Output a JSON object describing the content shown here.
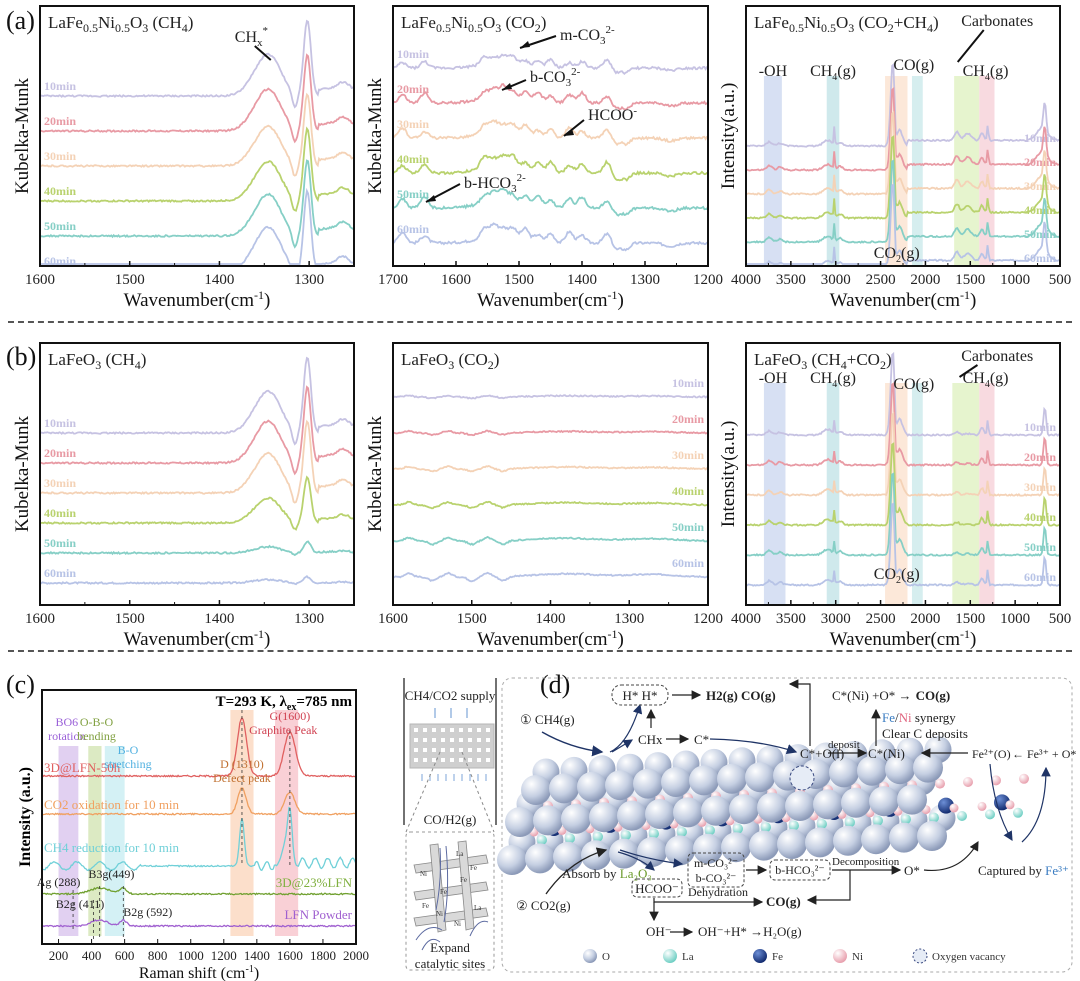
{
  "figure": {
    "panel_letters": [
      "(a)",
      "(b)",
      "(c)",
      "(d)"
    ]
  },
  "series_colors": {
    "10min": "#c6c2e2",
    "20min": "#e89aa4",
    "30min": "#f4d2b6",
    "40min": "#b9d26e",
    "50min": "#86cfc6",
    "60min": "#b7c3e6"
  },
  "chart_data": [
    {
      "id": "a1",
      "type": "line",
      "title": "LaFe0.5Ni0.5O3 (CH4)",
      "title_parts": {
        "main": "LaFe",
        "s1": "0.5",
        "m2": "Ni",
        "s2": "0.5",
        "m3": "O",
        "s3": "3",
        "m4": " (CH",
        "s4": "4",
        "m5": ")"
      },
      "xlabel": "Wavenumber(cm-1)",
      "ylabel": "Kubelka-Munk",
      "xlim": [
        1600,
        1250
      ],
      "xticks": [
        1600,
        1500,
        1400,
        1300
      ],
      "legend": [
        "10min",
        "20min",
        "30min",
        "40min",
        "50min",
        "60min"
      ],
      "annotations": [
        {
          "text": "CHx*",
          "x": 1345
        }
      ],
      "profile": "ch4_narrow",
      "amplitudes": [
        1.0,
        1.0,
        0.95,
        0.95,
        1.0,
        1.05
      ]
    },
    {
      "id": "a2",
      "type": "line",
      "title": "LaFe0.5Ni0.5O3 (CO2)",
      "title_parts": {
        "main": "LaFe",
        "s1": "0.5",
        "m2": "Ni",
        "s2": "0.5",
        "m3": "O",
        "s3": "3",
        "m4": " (CO",
        "s4": "2",
        "m5": ")"
      },
      "xlabel": "Wavenumber(cm-1)",
      "ylabel": "Kubelka-Munk",
      "xlim": [
        1700,
        1200
      ],
      "xticks": [
        1700,
        1600,
        1500,
        1400,
        1300,
        1200
      ],
      "legend": [
        "10min",
        "20min",
        "30min",
        "40min",
        "50min",
        "60min"
      ],
      "annotations": [
        {
          "text": "m-CO3 2-",
          "x": 1500
        },
        {
          "text": "b-CO3 2-",
          "x": 1530
        },
        {
          "text": "HCOO-",
          "x": 1430
        },
        {
          "text": "b-HCO3 2-",
          "x": 1650
        }
      ],
      "profile": "co2_bumps",
      "amplitudes": [
        0.7,
        0.9,
        0.9,
        1.0,
        1.0,
        1.0
      ]
    },
    {
      "id": "a3",
      "type": "line",
      "title": "LaFe0.5Ni0.5O3 (CO2+CH4)",
      "title_parts": {
        "main": "LaFe",
        "s1": "0.5",
        "m2": "Ni",
        "s2": "0.5",
        "m3": "O",
        "s3": "3",
        "m4": " (CO",
        "s4": "2",
        "m5": "+CH",
        "s5": "4",
        "m6": ")"
      },
      "xlabel": "Wavenumber(cm-1)",
      "ylabel": "Intensity(a.u.)",
      "xlim": [
        4000,
        500
      ],
      "xticks": [
        4000,
        3500,
        3000,
        2500,
        2000,
        1500,
        1000,
        500
      ],
      "legend": [
        "10min",
        "20min",
        "30min",
        "40min",
        "50min",
        "60min"
      ],
      "bands": [
        {
          "label": "-OH",
          "range": [
            3800,
            3600
          ],
          "color": "#c9d6ef"
        },
        {
          "label": "CH4(g)",
          "range": [
            3100,
            2960
          ],
          "color": "#bfe2e6"
        },
        {
          "label": "CO2(g)",
          "range": [
            2450,
            2200
          ],
          "color": "#fbe0cc"
        },
        {
          "label": "CO(g)",
          "range": [
            2150,
            2030
          ],
          "color": "#c8e8ea"
        },
        {
          "label": "Carbonates",
          "range": [
            1680,
            1400
          ],
          "color": "#def0be"
        },
        {
          "label": "CH4(g)",
          "range": [
            1400,
            1230
          ],
          "color": "#f5cdd6"
        }
      ],
      "profile": "wide",
      "amplitudes": [
        1,
        1,
        1,
        1,
        1,
        1
      ]
    },
    {
      "id": "b1",
      "type": "line",
      "title": "LaFeO3 (CH4)",
      "title_parts": {
        "main": "LaFeO",
        "s1": "3",
        "m2": " (CH",
        "s2": "4",
        "m3": ")"
      },
      "xlabel": "Wavenumber(cm-1)",
      "ylabel": "Kubelka-Munk",
      "xlim": [
        1600,
        1250
      ],
      "xticks": [
        1600,
        1500,
        1400,
        1300
      ],
      "legend": [
        "10min",
        "20min",
        "30min",
        "40min",
        "50min",
        "60min"
      ],
      "profile": "ch4_narrow",
      "amplitudes": [
        1.0,
        1.0,
        0.95,
        0.6,
        0.15,
        0.08
      ]
    },
    {
      "id": "b2",
      "type": "line",
      "title": "LaFeO3 (CO2)",
      "title_parts": {
        "main": "LaFeO",
        "s1": "3",
        "m2": " (CO",
        "s2": "2",
        "m3": ")"
      },
      "xlabel": "Wavenumber(cm-1)",
      "ylabel": "Kubelka-Munk",
      "xlim": [
        1600,
        1200
      ],
      "xticks": [
        1600,
        1500,
        1400,
        1300,
        1200
      ],
      "legend": [
        "10min",
        "20min",
        "30min",
        "40min",
        "50min",
        "60min"
      ],
      "profile": "co2_flat",
      "amplitudes": [
        0.3,
        0.4,
        0.5,
        0.6,
        0.7,
        0.8
      ]
    },
    {
      "id": "b3",
      "type": "line",
      "title": "LaFeO3 (CH4+CO2)",
      "title_parts": {
        "main": "LaFeO",
        "s1": "3",
        "m2": " (CH",
        "s2": "4",
        "m3": "+CO",
        "s3": "2",
        "m4": ")"
      },
      "xlabel": "Wavenumber(cm-1)",
      "ylabel": "Intensity(a.u.)",
      "xlim": [
        4000,
        500
      ],
      "xticks": [
        4000,
        3500,
        3000,
        2500,
        2000,
        1500,
        1000,
        500
      ],
      "legend": [
        "10min",
        "20min",
        "30min",
        "40min",
        "50min",
        "60min"
      ],
      "bands": [
        {
          "label": "-OH",
          "range": [
            3800,
            3560
          ],
          "color": "#c9d6ef"
        },
        {
          "label": "CH4(g)",
          "range": [
            3100,
            2960
          ],
          "color": "#bfe2e6"
        },
        {
          "label": "CO2(g)",
          "range": [
            2450,
            2200
          ],
          "color": "#fbe0cc"
        },
        {
          "label": "CO(g)",
          "range": [
            2150,
            2030
          ],
          "color": "#c8e8ea"
        },
        {
          "label": "Carbonates",
          "range": [
            1700,
            1400
          ],
          "color": "#def0be"
        },
        {
          "label": "CH4(g)",
          "range": [
            1400,
            1230
          ],
          "color": "#f5cdd6"
        }
      ],
      "profile": "wide_b",
      "amplitudes": [
        1,
        1,
        1,
        1,
        1,
        1
      ]
    },
    {
      "id": "c",
      "type": "line",
      "title": "T=293 K, λex=785 nm",
      "xlabel": "Raman shift (cm-1)",
      "ylabel": "Intensity (a.u.)",
      "xlim": [
        100,
        2000
      ],
      "xticks": [
        200,
        400,
        600,
        800,
        1000,
        1200,
        1400,
        1600,
        1800,
        2000
      ],
      "series": [
        {
          "name": "3D@LFN-50h",
          "color": "#e06060"
        },
        {
          "name": "CO2 oxidation for 10 min",
          "color": "#f0a060"
        },
        {
          "name": "CH4 reduction for 10 min",
          "color": "#70d0d8"
        },
        {
          "name": "3D@23%LFN",
          "color": "#70a030"
        },
        {
          "name": "LFN Powder",
          "color": "#a060d0"
        }
      ],
      "bands": [
        {
          "label": "BO6 rotation",
          "range": [
            200,
            320
          ],
          "color": "#dcc8ef"
        },
        {
          "label": "O-B-O bending",
          "range": [
            380,
            460
          ],
          "color": "#d6e6b8"
        },
        {
          "label": "B-O stretching",
          "range": [
            480,
            600
          ],
          "color": "#cdeef3"
        },
        {
          "label": "D (1310) Defect peak",
          "range": [
            1240,
            1380
          ],
          "color": "#fbd9c2"
        },
        {
          "label": "G(1600) Graphite Peak",
          "range": [
            1510,
            1650
          ],
          "color": "#f8c8cf"
        }
      ],
      "peak_labels": [
        "Ag (288)",
        "B2g (411)",
        "B3g(449)",
        "B2g (592)"
      ],
      "band_labels": {
        "bo6": "BO6",
        "rotation": "rotation",
        "obo": "O-B-O",
        "bending": "bending",
        "bo": "B-O",
        "stretching": "stretching",
        "d": "D (1310)",
        "defect": "Defect peak",
        "g": "G(1600)",
        "graphite": "Graphite Peak"
      }
    }
  ],
  "diagram": {
    "left": {
      "supply": "CH4/CO2 supply",
      "product": "CO/H2(g)",
      "expand_1": "Expand",
      "expand_2": "catalytic sites",
      "atoms": [
        "La",
        "Fe",
        "Ni",
        "Fe",
        "Fe",
        "Ni",
        "La",
        "Ni",
        "Fe"
      ]
    },
    "main": {
      "step1": "① CH4(g)",
      "step2": "② CO2(g)",
      "hh": "H* H*",
      "h2co": "H2(g) CO(g)",
      "chx": "CHx",
      "c_star": "C*",
      "c_o": "C*+O(l)",
      "deposit": "deposit",
      "c_ni": "C*(Ni)",
      "c_ni_eq_lhs": "C*(Ni) +O* →",
      "c_ni_eq_rhs": "CO(g)",
      "synergy_fe": "Fe",
      "synergy_slash": "/",
      "synergy_ni": "Ni",
      "synergy_rest": " synergy",
      "clear": "Clear C deposits",
      "fe2": "Fe²⁺(O)",
      "fe3": "← Fe³⁺ + O*",
      "absorb": "Absorb by ",
      "la2o3": "La₂O₃",
      "hcoo": "HCOO⁻",
      "carbonates_1": "m-CO₃²⁻",
      "carbonates_2": "b-CO₃²⁻",
      "bhco3": "b-HCO₃²⁻",
      "decomposition": "Decomposition",
      "o_star": "O*",
      "captured": "Captured by ",
      "captured_fe": "Fe³⁺",
      "dehydration": "Dehydration",
      "co_g": "CO(g)",
      "oh": "OH⁻",
      "water": "OH⁻+H* →H₂O(g)"
    },
    "legend": [
      {
        "label": "O",
        "color": "#b8c4dc"
      },
      {
        "label": "La",
        "color": "#8ee0d6"
      },
      {
        "label": "Fe",
        "color": "#22469a"
      },
      {
        "label": "Ni",
        "color": "#f0b8c2"
      },
      {
        "label": "Oxygen vacancy",
        "color": "#e6ecf6"
      }
    ]
  }
}
